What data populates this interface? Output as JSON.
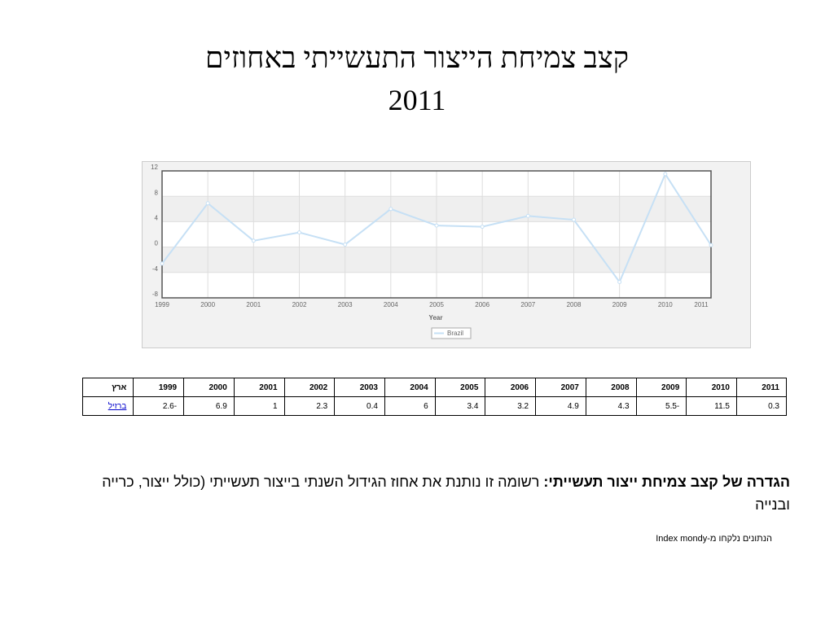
{
  "slide": {
    "title": "קצב צמיחת הייצור התעשייתי באחוזים",
    "subtitle": "2011",
    "definition_label": "הגדרה של קצב צמיחת ייצור תעשייתי:",
    "definition_text": "רשומה זו נותנת את אחוז הגידול השנתי בייצור תעשייתי (כולל ייצור, כרייה ובנייה",
    "source": "הנתונים נלקחו מ-Index mondy"
  },
  "table": {
    "header_label": "ארץ",
    "row_label": "ברזיל"
  },
  "chart_data": {
    "type": "line",
    "x_label": "Year",
    "categories": [
      "1999",
      "2000",
      "2001",
      "2002",
      "2003",
      "2004",
      "2005",
      "2006",
      "2007",
      "2008",
      "2009",
      "2010",
      "2011"
    ],
    "series": [
      {
        "name": "Brazil",
        "color": "#c6e0f5",
        "values": [
          -2.6,
          6.9,
          1,
          2.3,
          0.4,
          6,
          3.4,
          3.2,
          4.9,
          4.3,
          -5.5,
          11.5,
          0.3
        ]
      }
    ],
    "ylim": [
      -8,
      12
    ],
    "yticks": [
      -8,
      -4,
      0,
      4,
      8,
      12
    ],
    "grid": true,
    "legend": "bottom"
  }
}
